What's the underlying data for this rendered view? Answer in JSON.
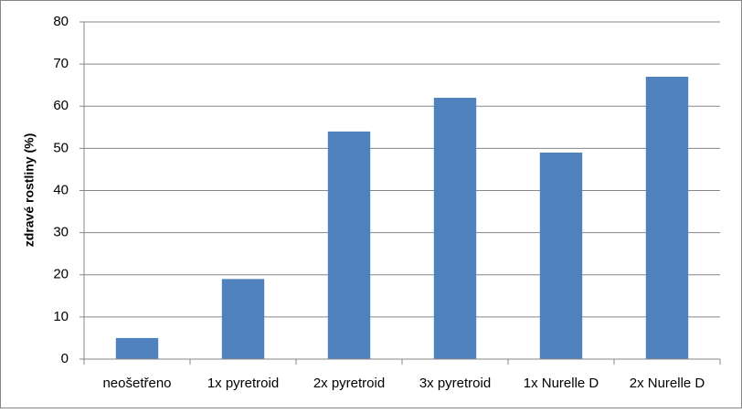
{
  "chart_data": {
    "type": "bar",
    "y_label": "zdravé rostliny (%)",
    "categories": [
      "neošetřeno",
      "1x pyretroid",
      "2x pyretroid",
      "3x pyretroid",
      "1x Nurelle D",
      "2x Nurelle D"
    ],
    "values": [
      5,
      19,
      54,
      62,
      49,
      67
    ],
    "color": "#4f81bd",
    "ylim": [
      0,
      80
    ],
    "yticks": [
      0,
      10,
      20,
      30,
      40,
      50,
      60,
      70,
      80
    ],
    "grid": true
  }
}
